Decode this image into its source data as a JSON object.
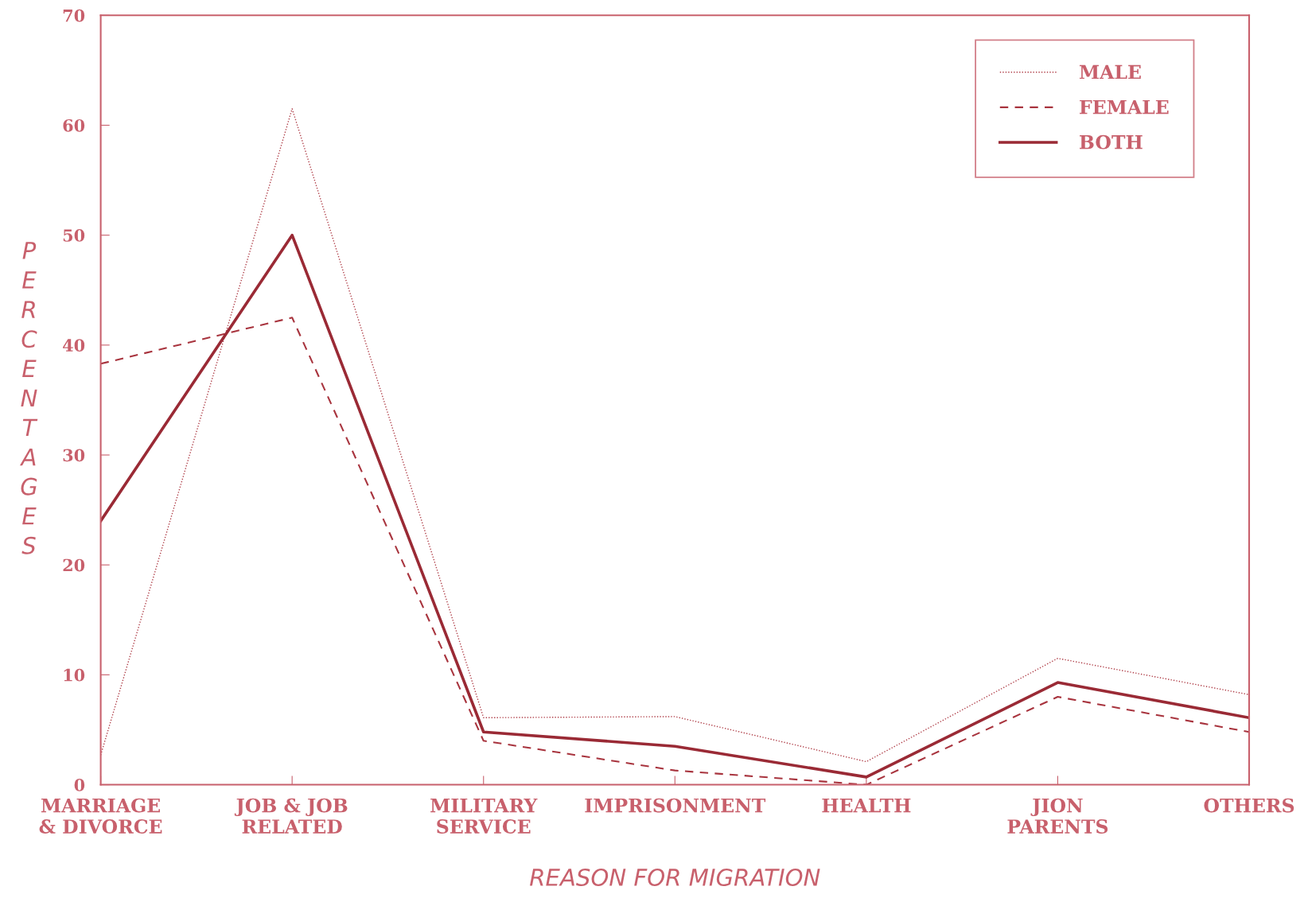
{
  "chart_data": {
    "type": "line",
    "xlabel": "REASON FOR MIGRATION",
    "ylabel": "PERCENTAGES",
    "categories": [
      "MARRIAGE\n& DIVORCE",
      "JOB & JOB\nRELATED",
      "MILITARY\nSERVICE",
      "IMPRISONMENT",
      "HEALTH",
      "JION\nPARENTS",
      "OTHERS"
    ],
    "series": [
      {
        "name": "MALE",
        "color": "#b0404a",
        "line_style": "dotted",
        "values": [
          2.7,
          61.5,
          6.1,
          6.2,
          2.1,
          11.5,
          8.2
        ]
      },
      {
        "name": "FEMALE",
        "color": "#a8343e",
        "line_style": "dashed",
        "values": [
          38.3,
          42.5,
          4.0,
          1.3,
          0,
          8.0,
          4.8
        ]
      },
      {
        "name": "BOTH",
        "color": "#9a2a35",
        "line_style": "solid",
        "values": [
          24.0,
          50.0,
          4.8,
          3.5,
          0.7,
          9.3,
          6.1
        ]
      }
    ],
    "ylim": [
      0,
      70
    ],
    "yticks": [
      0,
      10,
      20,
      30,
      40,
      50,
      60,
      70
    ],
    "grid": false,
    "legend": "top right",
    "marker": "none"
  }
}
